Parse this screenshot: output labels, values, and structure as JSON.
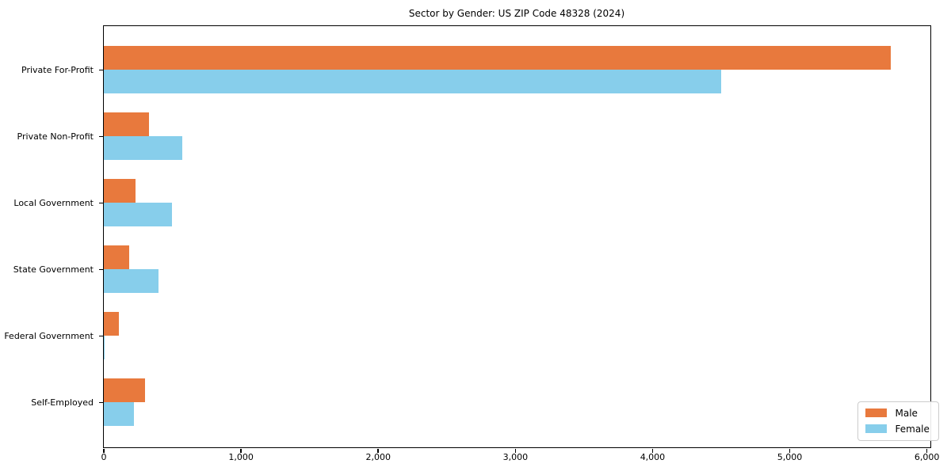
{
  "chart_data": {
    "type": "bar",
    "orientation": "horizontal",
    "title": "Sector by Gender: US ZIP Code 48328 (2024)",
    "categories": [
      "Private For-Profit",
      "Private Non-Profit",
      "Local Government",
      "State Government",
      "Federal Government",
      "Self-Employed"
    ],
    "series": [
      {
        "name": "Male",
        "color": "#e8793d",
        "values": [
          5740,
          335,
          235,
          190,
          115,
          305
        ]
      },
      {
        "name": "Female",
        "color": "#87ceeb",
        "values": [
          4500,
          575,
          500,
          400,
          5,
          220
        ]
      }
    ],
    "xlabel": "",
    "ylabel": "",
    "xlim": [
      0,
      6025
    ],
    "xticks": [
      0,
      1000,
      2000,
      3000,
      4000,
      5000,
      6000
    ],
    "xtick_labels": [
      "0",
      "1,000",
      "2,000",
      "3,000",
      "4,000",
      "5,000",
      "6,000"
    ],
    "grid": false,
    "legend": {
      "position": "lower right",
      "entries": [
        "Male",
        "Female"
      ]
    }
  },
  "colors": {
    "male": "#e8793d",
    "female": "#87ceeb",
    "spine": "#000000",
    "text": "#000000",
    "legend_border": "#cccccc",
    "background": "#ffffff"
  }
}
